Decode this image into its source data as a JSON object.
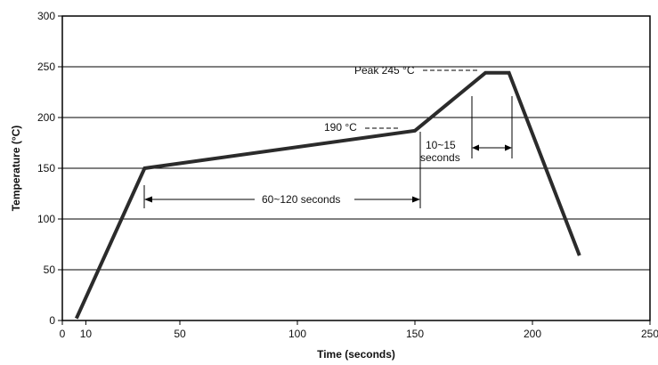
{
  "chart_data": {
    "type": "line",
    "xlabel": "Time (seconds)",
    "ylabel": "Temperature (°C)",
    "xlim": [
      0,
      250
    ],
    "ylim": [
      0,
      300
    ],
    "x_ticks": [
      0,
      10,
      50,
      100,
      150,
      200,
      250
    ],
    "y_ticks": [
      0,
      50,
      100,
      150,
      200,
      250,
      300
    ],
    "grid": "horizontal",
    "series": [
      {
        "points": [
          [
            6,
            2
          ],
          [
            35,
            150
          ],
          [
            150,
            187
          ],
          [
            180,
            244
          ],
          [
            190,
            244
          ],
          [
            220,
            64
          ]
        ]
      }
    ],
    "annotations": {
      "peak_label": "Peak 245 °C",
      "temp190_label": "190 °C",
      "interval_label_line1": "10~15",
      "interval_label_line2": "seconds",
      "duration_label": "60~120 seconds"
    }
  }
}
